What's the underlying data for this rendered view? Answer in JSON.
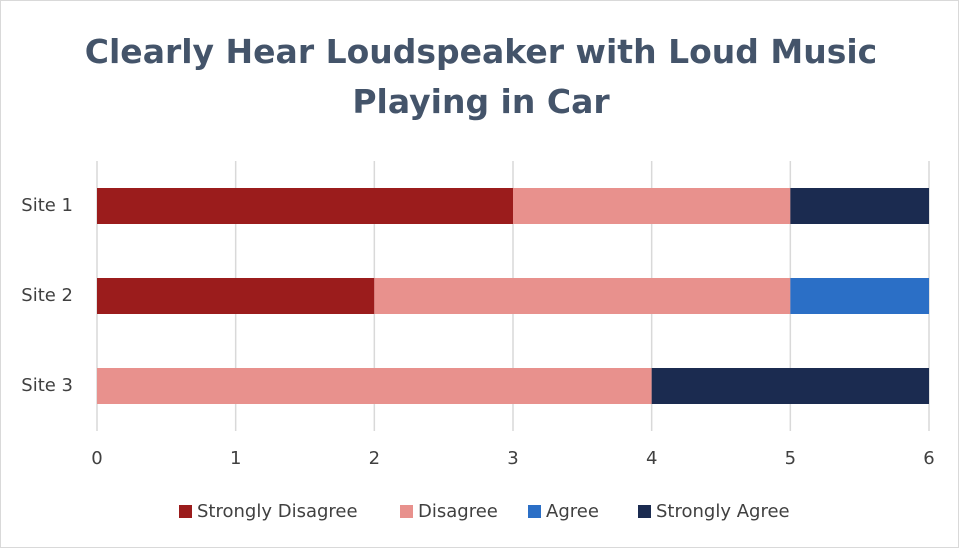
{
  "chart_data": {
    "type": "bar",
    "orientation": "horizontal",
    "stacked": true,
    "title": "Clearly Hear Loudspeaker with Loud Music Playing in Car",
    "categories": [
      "Site 1",
      "Site 2",
      "Site 3"
    ],
    "series": [
      {
        "name": "Strongly Disagree",
        "color": "#9b1c1c",
        "values": [
          3,
          2,
          0
        ]
      },
      {
        "name": "Disagree",
        "color": "#e8918d",
        "values": [
          2,
          3,
          4
        ]
      },
      {
        "name": "Agree",
        "color": "#2b6fc6",
        "values": [
          0,
          1,
          0
        ]
      },
      {
        "name": "Strongly Agree",
        "color": "#1b2b50",
        "values": [
          1,
          0,
          2
        ]
      }
    ],
    "xlim": [
      0,
      6
    ],
    "xticks": [
      0,
      1,
      2,
      3,
      4,
      5,
      6
    ],
    "grid": true,
    "legend": "bottom"
  }
}
